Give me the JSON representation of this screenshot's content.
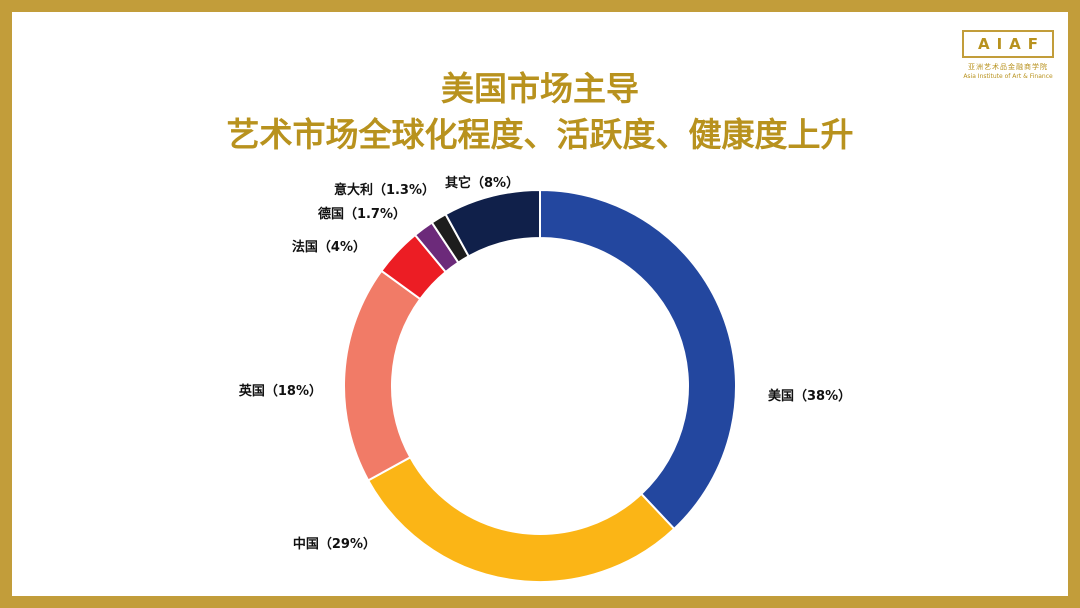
{
  "title_line1": "美国市场主导",
  "title_line2": "艺术市场全球化程度、活跃度、健康度上升",
  "logo": {
    "mark": "AIAF",
    "name_cn": "亚洲艺术品金融商学院",
    "name_en": "Asia Institute of Art & Finance"
  },
  "colors": {
    "frame": "#C29D3A",
    "title": "#B8921E"
  },
  "chart_data": {
    "type": "pie",
    "donut": true,
    "slices": [
      {
        "label": "美国（38%）",
        "value": 38,
        "color": "#23479F"
      },
      {
        "label": "中国（29%）",
        "value": 29,
        "color": "#FBB516"
      },
      {
        "label": "英国（18%）",
        "value": 18,
        "color": "#F17B67"
      },
      {
        "label": "法国（4%）",
        "value": 4,
        "color": "#EC1D24"
      },
      {
        "label": "德国（1.7%）",
        "value": 1.7,
        "color": "#6C2A7A"
      },
      {
        "label": "意大利（1.3%）",
        "value": 1.3,
        "color": "#1D1D1D"
      },
      {
        "label": "其它（8%）",
        "value": 8,
        "color": "#10204A"
      }
    ]
  }
}
